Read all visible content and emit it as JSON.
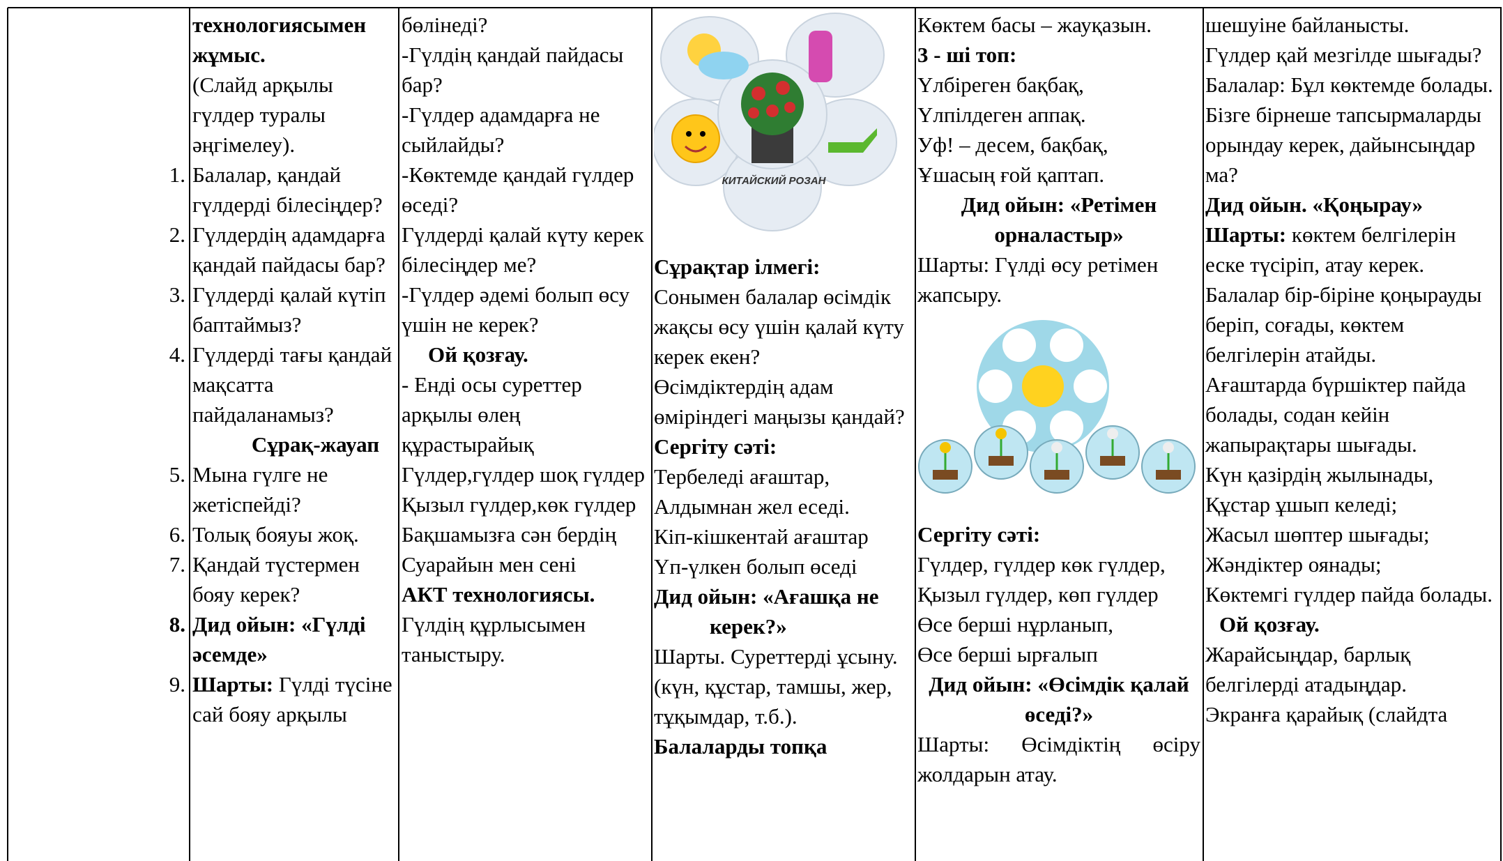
{
  "table": {
    "col1": [
      "технологиясымен жұмыс.",
      "(Слайд арқылы гүлдер туралы әңгімелеу).",
      {
        "number": "1.",
        "text": "Балалар, қандай гүлдерді білесіңдер?"
      },
      {
        "number": "2.",
        "text": "Гүлдердің адамдарға қандай пайдасы бар?"
      },
      {
        "number": "3.",
        "text": "Гүлдерді қалай күтіп баптаймыз?"
      },
      {
        "number": "4.",
        "text": "Гүлдерді тағы қандай мақсатта пайдаланамыз?"
      },
      "Сұрақ-жауап",
      {
        "number": "5.",
        "text": "Мына гүлге  не жетіспейді?"
      },
      {
        "number": "6.",
        "text": "Толық бояуы жоқ."
      },
      {
        "number": "7.",
        "text": "Қандай түстермен бояу керек?"
      },
      {
        "number": "8.",
        "text": "Дид  ойын: «Гүлді әсемде»"
      },
      {
        "number": "9.",
        "label": "Шарты:",
        "text": "Гүлді түсіне сай бояу арқылы"
      }
    ],
    "col2": [
      "бөлінеді?",
      "-Гүлдің қандай пайдасы бар?",
      "-Гүлдер адамдарға не сыйлайды?",
      "-Көктемде қандай гүлдер өседі?",
      "Гүлдерді қалай күту керек білесіңдер ме?",
      "-Гүлдер әдемі болып өсу үшін не керек?",
      "Ой қозғау.",
      "- Енді осы суреттер арқылы өлең құрастырайық",
      "Гүлдер,гүлдер шоқ гүлдер",
      "Қызыл гүлдер,көк гүлдер",
      "Бақшамызға сән бердің",
      "Суарайын мен сені",
      "АКТ технологиясы.",
      "Гүлдің құрлысымен таныстыру."
    ],
    "image_label": "КИТАЙСКИЙ РОЗАН",
    "col3": [
      "Сұрақтар ілмегі:",
      "Сонымен балалар өсімдік жақсы өсу үшін қалай күту керек екен?",
      "Өсімдіктердің адам өміріндегі маңызы қандай?",
      "Сергіту сәті:",
      "Тербеледі ағаштар,",
      "Алдымнан жел еседі.",
      "Кіп-кішкентай ағаштар",
      "Үп-үлкен болып өседі",
      "Дид ойын: «Ағашқа не",
      "керек?»",
      "Шарты.  Суреттерді ұсыну.(күн, құстар, тамшы, жер, тұқымдар, т.б.).",
      "Балаларды топқа"
    ],
    "col4": [
      "Көктем басы – жауқазын.",
      "3 - ші топ:",
      "Үлбіреген бақбақ,",
      "Үлпілдеген аппақ.",
      "Уф! – десем, бақбақ,",
      "Ұшасың ғой қаптап.",
      "Дид  ойын: «Ретімен орналастыр»",
      "Шарты: Гүлді өсу ретімен жапсыру.",
      "Сергіту сәті:",
      "Гүлдер, гүлдер көк гүлдер,",
      "Қызыл гүлдер, көп гүлдер",
      "Өсе берші нұрланып,",
      "Өсе берші ырғалып",
      "Дид  ойын: «Өсімдік қалай өседі?»",
      "Шарты: Өсімдіктің  өсіру жолдарын атау."
    ],
    "col5": [
      "шешуіне байланысты.",
      "Гүлдер қай мезгілде шығады?",
      "Балалар: Бұл көктемде болады.",
      "Бізге бірнеше тапсырмаларды орындау керек, дайынсыңдар ма?",
      "Дид ойын. «Қоңырау»",
      {
        "label": "Шарты:",
        "text": "көктем белгілерін еске түсіріп, атау керек."
      },
      "Балалар бір-біріне қоңырауды беріп, соғады, көктем белгілерін атайды.",
      "Ағаштарда бүршіктер пайда болады, содан кейін жапырақтары шығады.",
      "Күн қазірдің жылынады,",
      "Құстар  ұшып келеді;",
      "Жасыл шөптер шығады;",
      "Жәндіктер оянады;",
      "Көктемгі гүлдер пайда болады.",
      "Ой қозғау.",
      "Жарайсыңдар, барлық белгілерді атадыңдар.",
      "Экранға қарайық (слайдта"
    ]
  }
}
